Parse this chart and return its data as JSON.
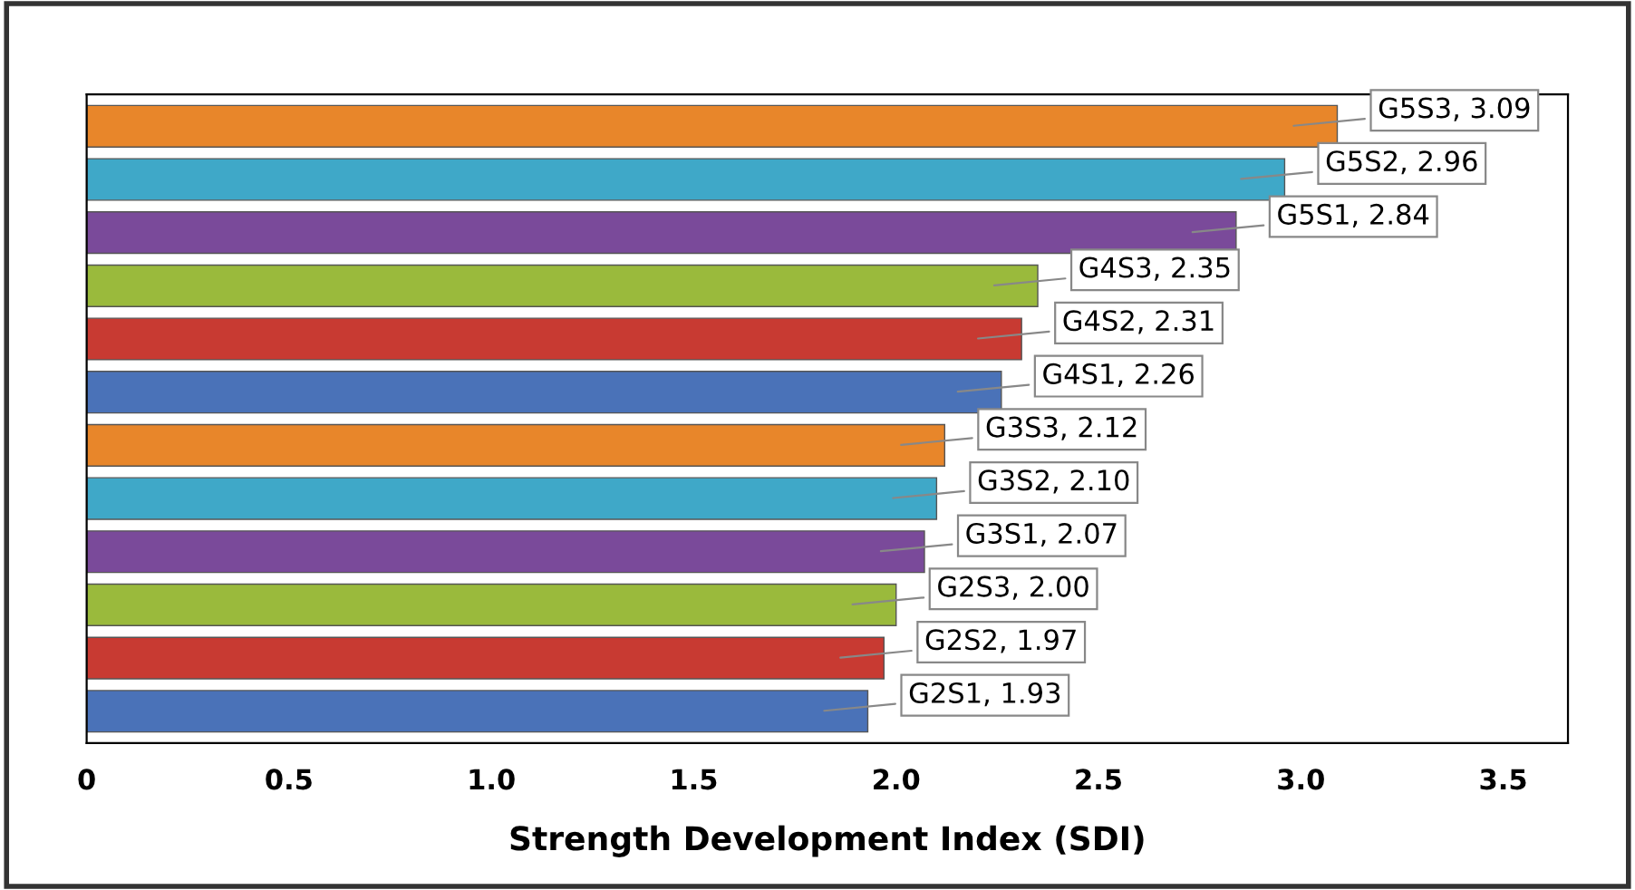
{
  "chart_data": {
    "type": "bar",
    "orientation": "horizontal",
    "xlabel": "Strength Development Index (SDI)",
    "categories": [
      null,
      null,
      null,
      null,
      null,
      null,
      null,
      null,
      null,
      null,
      null,
      null
    ],
    "values": [
      3.09,
      2.96,
      2.84,
      2.35,
      2.31,
      2.26,
      2.12,
      2.1,
      2.07,
      2.0,
      1.97,
      1.93
    ],
    "value_labels": [
      "G5S3, 3.09",
      "G5S2, 2.96",
      "G5S1, 2.84",
      "G4S3, 2.35",
      "G4S2, 2.31",
      "G4S1, 2.26",
      "G3S3, 2.12",
      "G3S2, 2.10",
      "G3S1, 2.07",
      "G2S3, 2.00",
      "G2S2, 1.97",
      "G2S1, 1.93"
    ],
    "colors": [
      "#e8862a",
      "#3fa8c8",
      "#7a4a9a",
      "#9aba3c",
      "#c83a32",
      "#4a72b8",
      "#e8862a",
      "#3fa8c8",
      "#7a4a9a",
      "#9aba3c",
      "#c83a32",
      "#4a72b8"
    ],
    "xlim": [
      0,
      3.66
    ],
    "xticks": [
      0,
      0.5,
      {
        "value": 1,
        "label": "1.0"
      },
      {
        "value": 1.5,
        "label": "1.5"
      },
      {
        "value": 2,
        "label": "2.0"
      },
      {
        "value": 2.5,
        "label": "2.5"
      },
      {
        "value": 3,
        "label": "3.0"
      },
      {
        "value": 3.5,
        "label": "3.5"
      }
    ],
    "tick_labels": "x",
    "grid": false,
    "legend": false
  }
}
